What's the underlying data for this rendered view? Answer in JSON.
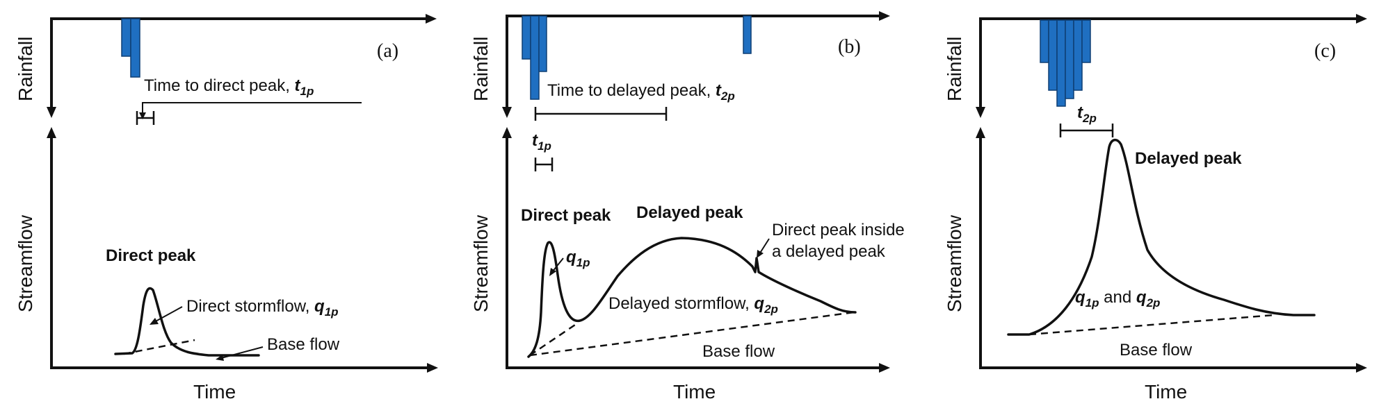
{
  "panels": {
    "a": {
      "tag": "(a)",
      "axes": {
        "rainfall": "Rainfall",
        "streamflow": "Streamflow",
        "time": "Time"
      },
      "labels": {
        "time_to_peak": "Time to direct peak, ",
        "time_to_peak_sym": "t",
        "time_to_peak_sub": "1p",
        "peak_title": "Direct peak",
        "stormflow": "Direct stormflow, ",
        "stormflow_sym": "q",
        "stormflow_sub": "1p",
        "baseflow": "Base flow"
      }
    },
    "b": {
      "tag": "(b)",
      "axes": {
        "rainfall": "Rainfall",
        "streamflow": "Streamflow",
        "time": "Time"
      },
      "labels": {
        "time_to_peak": "Time to delayed peak, ",
        "time_to_peak_sym": "t",
        "time_to_peak_sub": "2p",
        "t1p_sym": "t",
        "t1p_sub": "1p",
        "direct_peak": "Direct peak",
        "delayed_peak": "Delayed peak",
        "q1p_sym": "q",
        "q1p_sub": "1p",
        "inside_line1": "Direct peak inside",
        "inside_line2": "a delayed peak",
        "stormflow": "Delayed stormflow, ",
        "stormflow_sym": "q",
        "stormflow_sub": "2p",
        "baseflow": "Base flow"
      }
    },
    "c": {
      "tag": "(c)",
      "axes": {
        "rainfall": "Rainfall",
        "streamflow": "Streamflow",
        "time": "Time"
      },
      "labels": {
        "t2p_sym": "t",
        "t2p_sub": "2p",
        "delayed_peak": "Delayed peak",
        "q1p_sym": "q",
        "q1p_sub": "1p",
        "and": " and ",
        "q2p_sym": "q",
        "q2p_sub": "2p",
        "baseflow": "Base flow"
      }
    }
  },
  "colors": {
    "rain_bar": "#1f6fc1",
    "line": "#111111"
  }
}
